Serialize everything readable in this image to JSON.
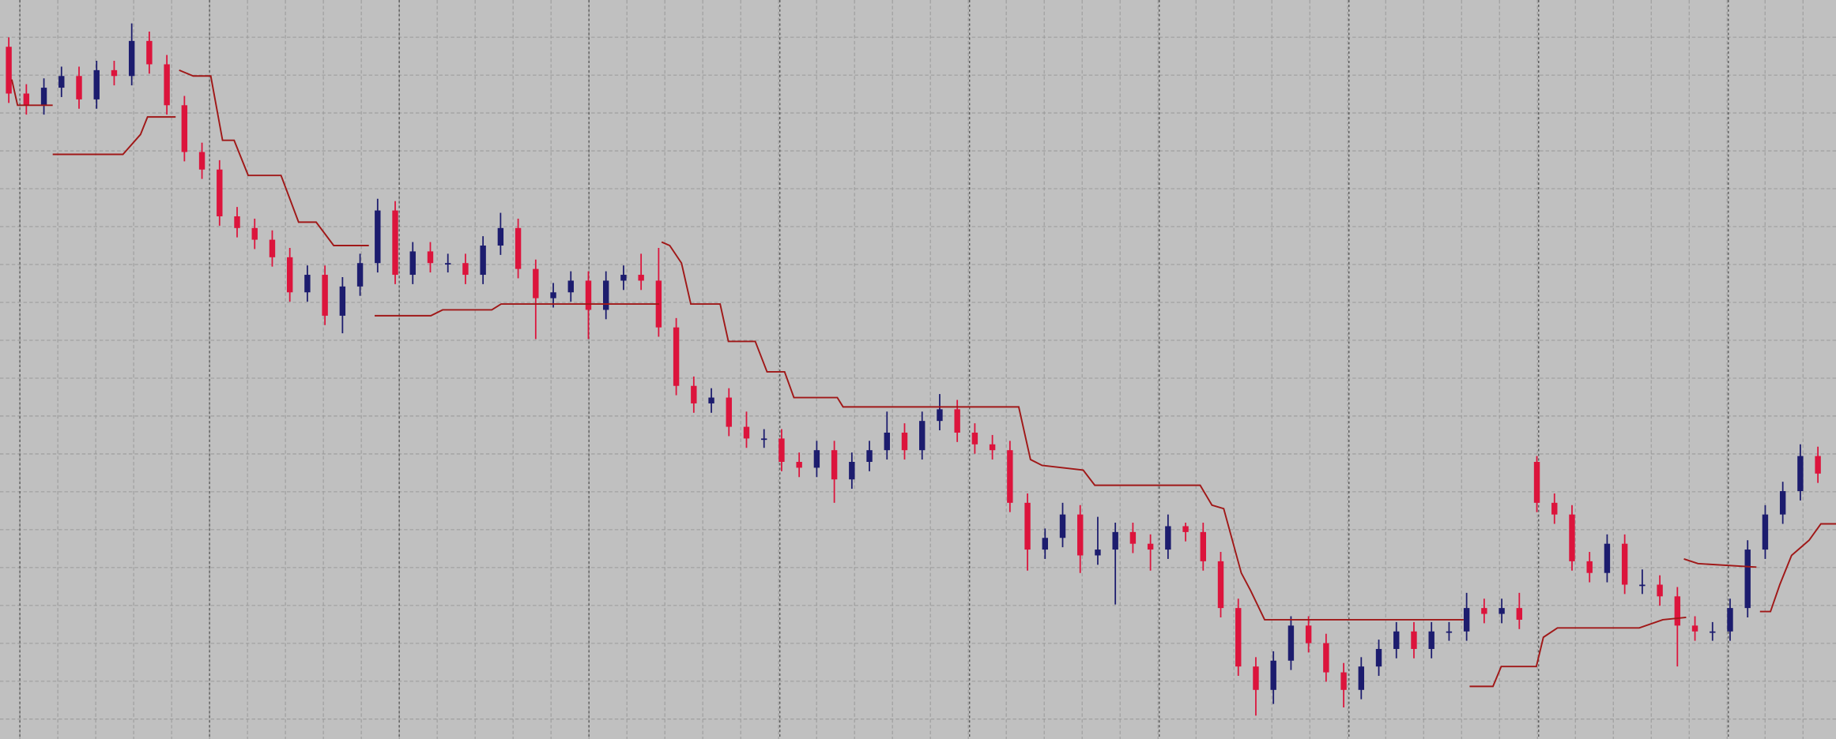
{
  "chart_data": {
    "type": "candlestick",
    "background": "#c0c0c0",
    "up_color": "#1c1c6e",
    "down_color": "#dc143c",
    "line_color": "#a01818",
    "grid": true,
    "xlim": [
      0,
      104.53
    ],
    "ylim": [
      0,
      632
    ],
    "xticks": [
      1.13,
      11.93,
      22.73,
      33.53,
      44.4,
      55.2,
      66,
      76.8,
      87.6,
      98.4
    ],
    "yticks": [
      17,
      49.4,
      81.8,
      114.2,
      146.6,
      179,
      211.4,
      243.8,
      276.2,
      308.6,
      341,
      373.4,
      405.8,
      438.2,
      470.6,
      503,
      535.4,
      567.8,
      600.2
    ],
    "open": [
      592,
      552,
      542,
      557,
      567,
      547,
      572,
      567,
      597,
      577,
      542,
      502,
      487,
      447,
      437,
      427,
      412,
      382,
      397,
      362,
      387,
      407,
      452,
      397,
      417,
      407,
      407,
      397,
      422,
      437,
      402,
      377,
      382,
      392,
      367,
      392,
      397,
      392,
      352,
      302,
      287,
      292,
      267,
      257,
      257,
      237,
      232,
      247,
      222,
      237,
      247,
      262,
      247,
      272,
      282,
      262,
      252,
      247,
      202,
      162,
      172,
      192,
      157,
      162,
      177,
      167,
      162,
      182,
      177,
      152,
      112,
      62,
      42,
      67,
      97,
      82,
      57,
      42,
      62,
      77,
      92,
      77,
      92,
      92,
      112,
      107,
      112,
      237,
      202,
      192,
      152,
      142,
      167,
      132,
      132,
      122,
      97,
      92,
      92,
      112,
      162,
      192,
      212,
      242
    ],
    "high": [
      600,
      560,
      565,
      575,
      575,
      580,
      580,
      612,
      605,
      585,
      550,
      510,
      495,
      455,
      445,
      435,
      420,
      405,
      405,
      395,
      415,
      462,
      460,
      425,
      425,
      415,
      415,
      430,
      450,
      445,
      410,
      390,
      400,
      400,
      400,
      405,
      415,
      420,
      360,
      310,
      300,
      300,
      280,
      265,
      265,
      245,
      255,
      255,
      245,
      255,
      280,
      270,
      280,
      295,
      290,
      270,
      260,
      255,
      210,
      180,
      202,
      200,
      190,
      185,
      185,
      175,
      192,
      185,
      185,
      160,
      120,
      70,
      75,
      105,
      105,
      90,
      65,
      70,
      85,
      100,
      100,
      100,
      100,
      125,
      120,
      120,
      125,
      242,
      210,
      200,
      160,
      175,
      175,
      145,
      140,
      130,
      105,
      100,
      120,
      170,
      200,
      220,
      252,
      250
    ],
    "low": [
      544,
      534,
      534,
      549,
      539,
      539,
      559,
      559,
      569,
      534,
      494,
      479,
      439,
      429,
      419,
      404,
      374,
      374,
      354,
      347,
      379,
      399,
      389,
      389,
      399,
      399,
      389,
      389,
      414,
      394,
      342,
      369,
      374,
      342,
      359,
      384,
      384,
      344,
      294,
      279,
      279,
      259,
      249,
      249,
      229,
      224,
      224,
      202,
      214,
      229,
      239,
      239,
      239,
      264,
      254,
      244,
      239,
      194,
      144,
      154,
      164,
      142,
      149,
      115,
      159,
      144,
      154,
      169,
      144,
      104,
      54,
      20,
      30,
      59,
      74,
      49,
      27,
      34,
      54,
      69,
      69,
      69,
      84,
      84,
      99,
      99,
      94,
      194,
      184,
      144,
      134,
      134,
      124,
      124,
      114,
      62,
      84,
      84,
      84,
      104,
      154,
      184,
      204,
      219
    ],
    "close": [
      552,
      542,
      557,
      567,
      547,
      572,
      567,
      597,
      577,
      542,
      502,
      487,
      447,
      437,
      427,
      412,
      382,
      397,
      362,
      387,
      407,
      452,
      397,
      417,
      407,
      407,
      397,
      422,
      437,
      402,
      377,
      382,
      392,
      367,
      392,
      397,
      392,
      352,
      302,
      287,
      292,
      267,
      257,
      257,
      237,
      232,
      247,
      222,
      237,
      247,
      262,
      247,
      272,
      282,
      262,
      252,
      247,
      202,
      162,
      172,
      192,
      157,
      162,
      177,
      167,
      162,
      182,
      177,
      152,
      112,
      62,
      42,
      67,
      97,
      82,
      57,
      42,
      62,
      77,
      92,
      77,
      92,
      92,
      112,
      107,
      112,
      102,
      202,
      192,
      152,
      142,
      167,
      132,
      132,
      122,
      97,
      92,
      92,
      112,
      162,
      192,
      212,
      242,
      227
    ],
    "lines": [
      {
        "x": [
          0.67,
          1,
          3,
          null,
          3,
          7,
          8,
          8.4,
          10,
          null,
          21.33,
          24.53,
          25.2,
          28,
          28.53,
          37.53,
          null,
          83.67,
          85,
          85.47,
          87.47,
          87.87,
          88.67,
          93.33,
          94.67,
          96,
          null,
          100.2,
          100.8,
          101.33,
          102,
          103,
          103.67,
          104.53
        ],
        "values": [
          564,
          542,
          542,
          null,
          500,
          500,
          517,
          532,
          532,
          null,
          362,
          362,
          367,
          367,
          372,
          372,
          null,
          45,
          45,
          62,
          62,
          87,
          95,
          95,
          102,
          104,
          null,
          109,
          109,
          132,
          157,
          170,
          184,
          184
        ]
      },
      {
        "x": [
          10.2,
          11,
          12,
          12.67,
          13.33,
          14.13,
          16,
          17,
          18,
          19,
          21,
          null,
          37.67,
          38.13,
          38.8,
          39.33,
          41,
          41.47,
          43,
          43.67,
          44.67,
          45.2,
          47.67,
          48,
          58,
          58.67,
          59.33,
          61.67,
          62.33,
          68.33,
          69,
          69.67,
          70.67,
          71.2,
          72,
          83.33,
          null,
          95.87,
          96.67,
          100
        ],
        "values": [
          572,
          567,
          567,
          512,
          512,
          482,
          482,
          442,
          442,
          422,
          422,
          null,
          425,
          422,
          407,
          372,
          372,
          340,
          340,
          314,
          314,
          292,
          292,
          284,
          284,
          239,
          234,
          230,
          217,
          217,
          200,
          197,
          142,
          127,
          102,
          102,
          null,
          154,
          150,
          147
        ]
      }
    ]
  }
}
